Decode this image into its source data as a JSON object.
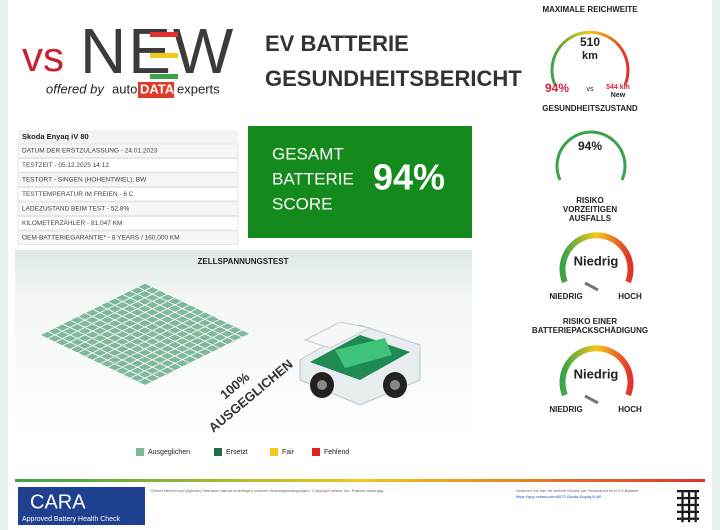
{
  "logo": {
    "vs": "vs",
    "new": "NEW",
    "offered_by": "offered by",
    "auto": "auto",
    "data": "DATA",
    "experts": "experts"
  },
  "header": {
    "title_line1": "EV BATTERIE",
    "title_line2": "GESUNDHEITSBERICHT"
  },
  "vehicle": {
    "model": "Skoda Enyaq iV 80",
    "rows": [
      "DATUM DER ERSTZULASSUNG - 24.01.2023",
      "TESTZEIT - 05.12.2025 14:12",
      "TESTORT - SINGEN (HOHENTWIEL), BW",
      "TESTTEMPERATUR IM FREIEN - 6 C",
      "LADEZUSTAND BEIM TEST - 52.8%",
      "KILOMETERZÄHLER - 81,047 KM",
      "OEM-BATTERIEGARANTIE* - 8 YEARS / 160,000 KM"
    ]
  },
  "score": {
    "lines": [
      "GESAMT",
      "BATTERIE",
      "SCORE"
    ],
    "value": "94%"
  },
  "cell_test": {
    "title": "ZELLSPANNUNGSTEST",
    "result_line1": "100%",
    "result_line2": "AUSGEGLICHEN",
    "legend": [
      {
        "label": "Ausgeglichen",
        "color": "#7fb89a"
      },
      {
        "label": "Ersetzt",
        "color": "#1f6e45"
      },
      {
        "label": "Fair",
        "color": "#f2c81b"
      },
      {
        "label": "Fehlend",
        "color": "#e02020"
      }
    ]
  },
  "range": {
    "title": "MAXIMALE REICHWEITE",
    "value": "510",
    "unit": "km",
    "percent": "94%",
    "vs": "vs",
    "new_value": "544 km",
    "new_label": "New"
  },
  "health": {
    "title": "GESUNDHEITSZUSTAND",
    "value": "94%"
  },
  "risk_failure": {
    "title_line1": "RISIKO",
    "title_line2": "VORZEITIGEN",
    "title_line3": "AUSFALLS",
    "value": "Niedrig",
    "low": "NIEDRIG",
    "high": "HOCH"
  },
  "risk_damage": {
    "title_line1": "RISIKO EINER",
    "title_line2": "BATTERIEPACKSCHÄDIGUNG",
    "value": "Niedrig",
    "low": "NIEDRIG",
    "high": "HOCH"
  },
  "footer": {
    "cara": "CARA",
    "cara_sub": "Approved Battery Health Check",
    "legal": "*Dieser Bericht und jegliches Vertrauen darauf unterliegen unseren Nutzungsbedingungen. Copyright vsNew, Inc. Patente anhängig.",
    "scan": "Scannen Sie hier für weitere Details zur Gesundheit Ihrer EV-Batterie",
    "url": "https://app.vsnew.com/8072-Skoda-Enyaq-iV-80"
  }
}
